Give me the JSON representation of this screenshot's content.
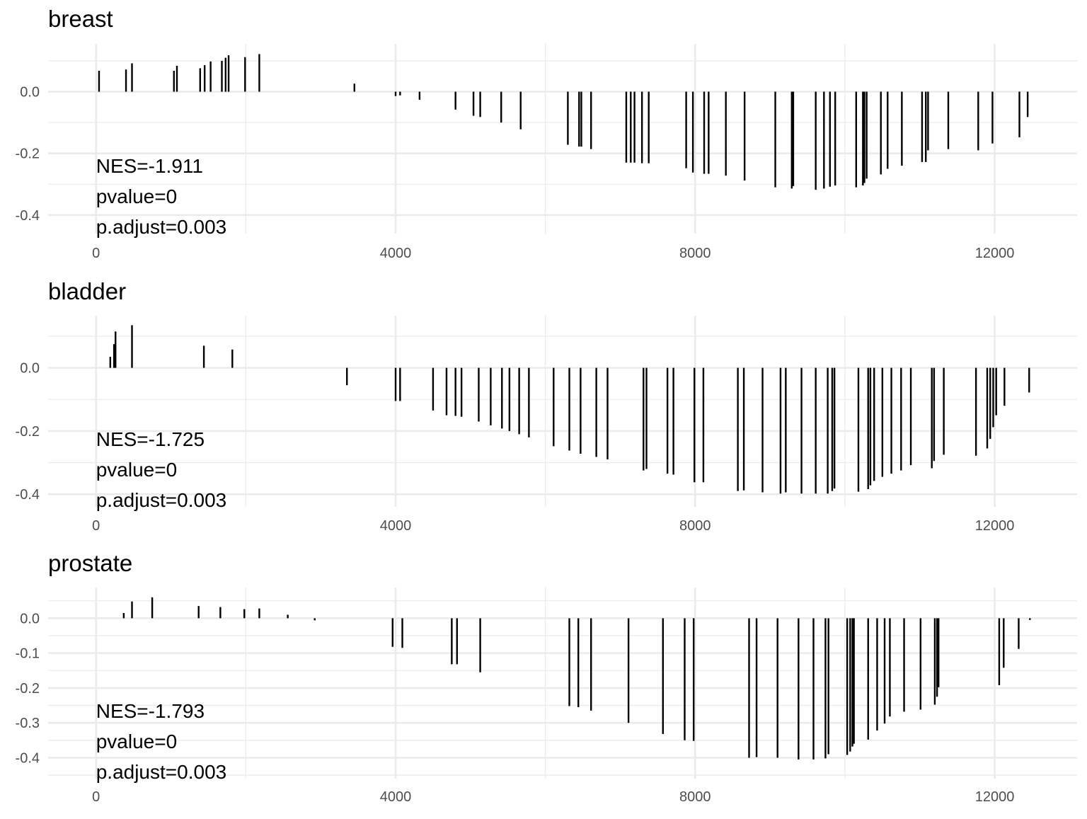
{
  "chart_data": [
    {
      "type": "bar",
      "title": "breast",
      "xlabel": "",
      "ylabel": "",
      "xlim": [
        -640,
        13100
      ],
      "ylim": [
        -0.46,
        0.155
      ],
      "x_ticks": [
        0,
        4000,
        8000,
        12000
      ],
      "x_tick_labels": [
        "0",
        "4000",
        "8000",
        "12000"
      ],
      "y_ticks": [
        0.0,
        -0.2,
        -0.4
      ],
      "y_tick_labels": [
        "0.0",
        "-0.2",
        "-0.4"
      ],
      "grid": true,
      "legend": "none",
      "annotations": [
        "NES=-1.911",
        "pvalue=0",
        "p.adjust=0.003"
      ],
      "x": [
        40,
        400,
        480,
        1040,
        1080,
        1390,
        1450,
        1530,
        1680,
        1730,
        1770,
        1990,
        2180,
        3450,
        4000,
        4060,
        4320,
        4800,
        5040,
        5130,
        5410,
        5670,
        6300,
        6450,
        6480,
        6610,
        7080,
        7140,
        7190,
        7290,
        7380,
        7880,
        7970,
        8120,
        8180,
        8410,
        8660,
        9070,
        9290,
        9310,
        9610,
        9720,
        9800,
        9870,
        10150,
        10240,
        10260,
        10290,
        10480,
        10570,
        10760,
        11030,
        11080,
        11110,
        11380,
        11780,
        11970,
        12330,
        12440
      ],
      "y": [
        0.068,
        0.072,
        0.092,
        0.068,
        0.084,
        0.076,
        0.086,
        0.098,
        0.1,
        0.11,
        0.118,
        0.112,
        0.122,
        0.026,
        -0.014,
        -0.012,
        -0.026,
        -0.058,
        -0.078,
        -0.082,
        -0.1,
        -0.122,
        -0.172,
        -0.178,
        -0.178,
        -0.186,
        -0.23,
        -0.23,
        -0.23,
        -0.232,
        -0.232,
        -0.248,
        -0.262,
        -0.266,
        -0.266,
        -0.272,
        -0.288,
        -0.31,
        -0.314,
        -0.306,
        -0.318,
        -0.314,
        -0.308,
        -0.304,
        -0.31,
        -0.304,
        -0.296,
        -0.282,
        -0.268,
        -0.25,
        -0.24,
        -0.228,
        -0.228,
        -0.19,
        -0.186,
        -0.19,
        -0.168,
        -0.148,
        -0.082
      ]
    },
    {
      "type": "bar",
      "title": "bladder",
      "xlabel": "",
      "ylabel": "",
      "xlim": [
        -640,
        13100
      ],
      "ylim": [
        -0.44,
        0.165
      ],
      "x_ticks": [
        0,
        4000,
        8000,
        12000
      ],
      "x_tick_labels": [
        "0",
        "4000",
        "8000",
        "12000"
      ],
      "y_ticks": [
        0.0,
        -0.2,
        -0.4
      ],
      "y_tick_labels": [
        "0.0",
        "-0.2",
        "-0.4"
      ],
      "grid": true,
      "legend": "none",
      "annotations": [
        "NES=-1.725",
        "pvalue=0",
        "p.adjust=0.003"
      ],
      "x": [
        190,
        240,
        260,
        480,
        1440,
        1820,
        3350,
        4000,
        4060,
        4500,
        4680,
        4800,
        4880,
        5110,
        5270,
        5420,
        5520,
        5650,
        5780,
        6110,
        6320,
        6470,
        6680,
        6830,
        7310,
        7350,
        7630,
        7710,
        7990,
        8110,
        8570,
        8650,
        8900,
        9140,
        9210,
        9420,
        9610,
        9770,
        9830,
        9860,
        10180,
        10310,
        10340,
        10390,
        10500,
        10620,
        10750,
        10880,
        11160,
        11190,
        11320,
        11750,
        11900,
        11940,
        11980,
        12020,
        12130,
        12460
      ],
      "y": [
        0.035,
        0.075,
        0.115,
        0.135,
        0.07,
        0.058,
        -0.055,
        -0.105,
        -0.105,
        -0.135,
        -0.15,
        -0.152,
        -0.155,
        -0.17,
        -0.182,
        -0.192,
        -0.2,
        -0.21,
        -0.22,
        -0.248,
        -0.262,
        -0.272,
        -0.282,
        -0.29,
        -0.325,
        -0.32,
        -0.335,
        -0.338,
        -0.362,
        -0.362,
        -0.39,
        -0.388,
        -0.394,
        -0.398,
        -0.394,
        -0.398,
        -0.398,
        -0.398,
        -0.39,
        -0.382,
        -0.392,
        -0.384,
        -0.372,
        -0.358,
        -0.345,
        -0.335,
        -0.325,
        -0.308,
        -0.318,
        -0.295,
        -0.275,
        -0.278,
        -0.255,
        -0.225,
        -0.188,
        -0.15,
        -0.12,
        -0.078
      ]
    },
    {
      "type": "bar",
      "title": "prostate",
      "xlabel": "",
      "ylabel": "",
      "xlim": [
        -640,
        13100
      ],
      "ylim": [
        -0.46,
        0.088
      ],
      "x_ticks": [
        0,
        4000,
        8000,
        12000
      ],
      "x_tick_labels": [
        "0",
        "4000",
        "8000",
        "12000"
      ],
      "y_ticks": [
        0.0,
        -0.1,
        -0.2,
        -0.3,
        -0.4
      ],
      "y_tick_labels": [
        "0.0",
        "-0.1",
        "-0.2",
        "-0.3",
        "-0.4"
      ],
      "grid": true,
      "legend": "none",
      "annotations": [
        "NES=-1.793",
        "pvalue=0",
        "p.adjust=0.003"
      ],
      "x": [
        370,
        480,
        750,
        1370,
        1660,
        1980,
        2180,
        2560,
        2920,
        3960,
        4090,
        4750,
        4820,
        5130,
        6320,
        6440,
        6610,
        7110,
        7570,
        7860,
        7980,
        8720,
        8820,
        9100,
        9380,
        9580,
        9740,
        9780,
        10030,
        10070,
        10100,
        10120,
        10310,
        10430,
        10530,
        10600,
        10790,
        11010,
        11200,
        11230,
        11250,
        12060,
        12120,
        12320,
        12470
      ],
      "y": [
        0.015,
        0.048,
        0.06,
        0.035,
        0.032,
        0.026,
        0.028,
        0.01,
        -0.006,
        -0.082,
        -0.085,
        -0.132,
        -0.132,
        -0.155,
        -0.252,
        -0.255,
        -0.265,
        -0.3,
        -0.332,
        -0.35,
        -0.352,
        -0.4,
        -0.398,
        -0.4,
        -0.405,
        -0.405,
        -0.402,
        -0.39,
        -0.392,
        -0.382,
        -0.368,
        -0.36,
        -0.348,
        -0.322,
        -0.302,
        -0.282,
        -0.268,
        -0.262,
        -0.248,
        -0.225,
        -0.198,
        -0.192,
        -0.142,
        -0.088,
        -0.005
      ]
    }
  ]
}
